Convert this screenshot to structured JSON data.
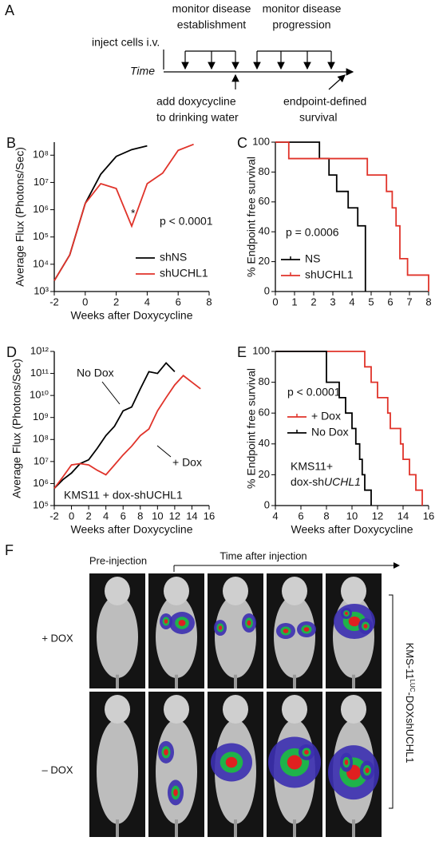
{
  "panel_a": {
    "label": "A",
    "establish": [
      "monitor disease",
      "establishment"
    ],
    "progress": [
      "monitor disease",
      "progression"
    ],
    "inject": "inject cells i.v.",
    "time": "Time",
    "dox": [
      "add doxycycline",
      "to drinking water"
    ],
    "endpoint": [
      "endpoint-defined",
      "survival"
    ]
  },
  "chart_data": [
    {
      "type": "line",
      "panel": "B",
      "log_y": true,
      "xlabel": "Weeks after Doxycycline",
      "ylabel": "Average Flux (Photons/Sec)",
      "xlim": [
        -2,
        8
      ],
      "xticks": [
        -2,
        0,
        2,
        4,
        6,
        8
      ],
      "ylim": [
        1000,
        300000000
      ],
      "yticks": [
        {
          "value": 1000,
          "label": "10³"
        },
        {
          "value": 10000,
          "label": "10⁴"
        },
        {
          "value": 100000,
          "label": "10⁵"
        },
        {
          "value": 1000000,
          "label": "10⁶"
        },
        {
          "value": 10000000,
          "label": "10⁷"
        },
        {
          "value": 100000000,
          "label": "10⁸"
        }
      ],
      "legend": "lower right",
      "annotations": [
        "*",
        "p < 0.0001"
      ],
      "series": [
        {
          "name": "shNS",
          "color": "#000000",
          "x": [
            -2,
            -1,
            0,
            1,
            2,
            3,
            4
          ],
          "values": [
            2500,
            22000,
            1700000,
            20000000,
            90000000,
            160000000,
            220000000
          ]
        },
        {
          "name": "shUCHL1",
          "color": "#e0332a",
          "x": [
            -2,
            -1,
            0,
            1,
            2,
            3,
            4,
            5,
            6,
            7
          ],
          "values": [
            2500,
            22000,
            1700000,
            9000000,
            6000000,
            250000,
            9000000,
            22000000,
            150000000,
            250000000
          ]
        }
      ]
    },
    {
      "type": "line",
      "panel": "C",
      "drawstyle": "steps-post",
      "xlabel": null,
      "ylabel": "% Endpoint free survival",
      "xlim": [
        0,
        8
      ],
      "xticks": [
        0,
        1,
        2,
        3,
        4,
        5,
        6,
        7,
        8
      ],
      "ylim": [
        0,
        100
      ],
      "yticks": [
        0,
        20,
        40,
        60,
        80,
        100
      ],
      "legend": "lower left",
      "annotations": [
        "p = 0.0006"
      ],
      "series": [
        {
          "name": "NS",
          "color": "#000000",
          "x": [
            0,
            2.3,
            2.8,
            3.2,
            3.8,
            4.3,
            4.7
          ],
          "values": [
            100,
            89,
            78,
            67,
            56,
            44,
            0
          ]
        },
        {
          "name": "shUCHL1",
          "color": "#e0332a",
          "x": [
            0,
            0.7,
            4.8,
            5.8,
            6.1,
            6.3,
            6.5,
            6.9,
            8
          ],
          "values": [
            100,
            89,
            78,
            67,
            56,
            44,
            22,
            11,
            0
          ]
        }
      ]
    },
    {
      "type": "line",
      "panel": "D",
      "log_y": true,
      "xlabel": "Weeks after Doxycycline",
      "ylabel": "Average Flux (Photons/Sec)",
      "xlim": [
        -2,
        16
      ],
      "xticks": [
        -2,
        0,
        2,
        4,
        6,
        8,
        10,
        12,
        14,
        16
      ],
      "ylim": [
        100000,
        1000000000000
      ],
      "yticks": [
        {
          "value": 100000,
          "label": "10⁵"
        },
        {
          "value": 1000000,
          "label": "10⁶"
        },
        {
          "value": 10000000,
          "label": "10⁷"
        },
        {
          "value": 100000000,
          "label": "10⁸"
        },
        {
          "value": 1000000000,
          "label": "10⁹"
        },
        {
          "value": 10000000000,
          "label": "10¹⁰"
        },
        {
          "value": 100000000000,
          "label": "10¹¹"
        },
        {
          "value": 1000000000000,
          "label": "10¹²"
        }
      ],
      "annotations": [
        "No Dox",
        "+ Dox",
        "KMS11 + dox-shUCHL1"
      ],
      "series": [
        {
          "color": "#000000",
          "x": [
            -2,
            -1,
            0,
            1,
            2,
            3,
            4,
            5,
            6,
            7,
            8,
            9,
            10,
            11,
            12
          ],
          "values": [
            600000,
            1500000,
            3000000,
            8000000,
            12000000,
            40000000,
            150000000,
            400000000,
            2000000000,
            3000000000,
            20000000000,
            120000000000,
            100000000000,
            300000000000,
            120000000000
          ]
        },
        {
          "color": "#e0332a",
          "x": [
            -2,
            -1,
            0,
            1,
            2,
            3,
            4,
            5,
            6,
            7,
            8,
            9,
            10,
            11,
            12,
            13,
            14,
            15
          ],
          "values": [
            600000,
            2000000,
            7000000,
            8000000,
            7000000,
            4000000,
            2500000,
            7000000,
            20000000,
            50000000,
            150000000,
            300000000,
            2000000000,
            8000000000,
            30000000000,
            80000000000,
            40000000000,
            20000000000
          ]
        }
      ]
    },
    {
      "type": "line",
      "panel": "E",
      "drawstyle": "steps-post",
      "xlabel": "Weeks after Doxycycline",
      "ylabel": "% Endpoint free survival",
      "xlim": [
        4,
        16
      ],
      "xticks": [
        4,
        6,
        8,
        10,
        12,
        14,
        16
      ],
      "ylim": [
        0,
        100
      ],
      "yticks": [
        0,
        20,
        40,
        60,
        80,
        100
      ],
      "legend": "center left",
      "annotations": [
        "p < 0.0001",
        "KMS11+",
        [
          "dox-sh",
          "UCHL1"
        ]
      ],
      "series": [
        {
          "name": "+ Dox",
          "color": "#e0332a",
          "x": [
            4,
            11,
            11.5,
            12,
            12.8,
            13,
            13.8,
            14,
            14.5,
            15,
            15.5
          ],
          "values": [
            100,
            90,
            80,
            70,
            60,
            50,
            40,
            30,
            20,
            10,
            0
          ]
        },
        {
          "name": "No Dox",
          "color": "#000000",
          "x": [
            4,
            8,
            9,
            9.5,
            10,
            10.3,
            10.6,
            10.8,
            11,
            11.5
          ],
          "values": [
            100,
            80,
            70,
            60,
            50,
            40,
            30,
            20,
            10,
            0
          ]
        }
      ]
    }
  ],
  "panel_f": {
    "label": "F",
    "pre": "Pre-injection",
    "time": "Time after injection",
    "plus": "+ DOX",
    "minus": "– DOX",
    "side": [
      "KMS-11",
      "LUC",
      "-DOXshUCHL1"
    ]
  }
}
